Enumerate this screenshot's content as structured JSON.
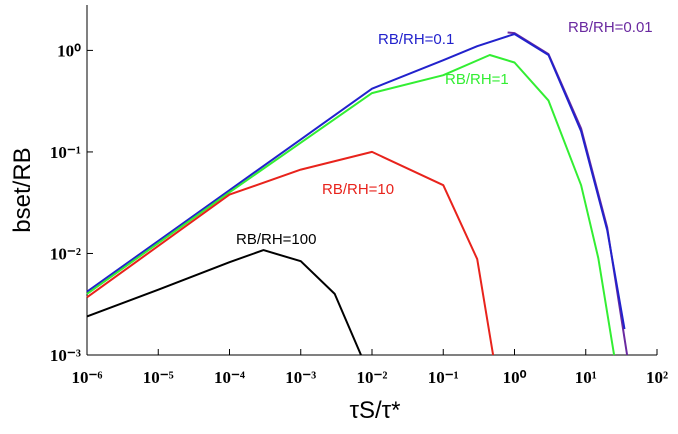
{
  "chart_data": {
    "type": "line",
    "x_label": "τS/τ*",
    "y_label": "bset/RB",
    "log_x": true,
    "log_y": true,
    "xlim": [
      1e-06,
      100
    ],
    "ylim": [
      0.001,
      2.8
    ],
    "xticks": [
      {
        "value": 1e-06,
        "label": "10⁻⁶"
      },
      {
        "value": 1e-05,
        "label": "10⁻⁵"
      },
      {
        "value": 0.0001,
        "label": "10⁻⁴"
      },
      {
        "value": 0.001,
        "label": "10⁻³"
      },
      {
        "value": 0.01,
        "label": "10⁻²"
      },
      {
        "value": 0.1,
        "label": "10⁻¹"
      },
      {
        "value": 1,
        "label": "10⁰"
      },
      {
        "value": 10,
        "label": "10¹"
      },
      {
        "value": 100,
        "label": "10²"
      }
    ],
    "yticks": [
      {
        "value": 0.001,
        "label": "10⁻³"
      },
      {
        "value": 0.01,
        "label": "10⁻²"
      },
      {
        "value": 0.1,
        "label": "10⁻¹"
      },
      {
        "value": 1,
        "label": "10⁰"
      }
    ],
    "series": [
      {
        "name": "RB/RH=0.01",
        "color": "#6a2aa0",
        "x": [
          0.8,
          1,
          3,
          8.6,
          20,
          38
        ],
        "values": [
          1.5,
          1.48,
          0.92,
          0.17,
          0.018,
          0.001
        ]
      },
      {
        "name": "RB/RH=0.1",
        "color": "#2222cc",
        "x": [
          1e-06,
          1e-05,
          0.0001,
          0.001,
          0.01,
          0.1,
          0.3,
          1,
          3,
          8.6,
          20,
          35
        ],
        "values": [
          0.0042,
          0.0133,
          0.042,
          0.133,
          0.42,
          0.8,
          1.1,
          1.45,
          0.9,
          0.16,
          0.017,
          0.0018
        ]
      },
      {
        "name": "RB/RH=1",
        "color": "#33ee33",
        "x": [
          1e-06,
          0.0001,
          0.01,
          0.1,
          0.45,
          1,
          3,
          8.6,
          15,
          25
        ],
        "values": [
          0.004,
          0.04,
          0.38,
          0.57,
          0.9,
          0.76,
          0.32,
          0.047,
          0.009,
          0.001
        ]
      },
      {
        "name": "RB/RH=10",
        "color": "#e8231c",
        "x": [
          1e-06,
          0.0001,
          0.001,
          0.01,
          0.1,
          0.3,
          0.5
        ],
        "values": [
          0.0037,
          0.038,
          0.067,
          0.1,
          0.047,
          0.0088,
          0.001
        ]
      },
      {
        "name": "RB/RH=100",
        "color": "#000000",
        "x": [
          1e-06,
          1e-05,
          0.0001,
          0.0003,
          0.001,
          0.003,
          0.007
        ],
        "values": [
          0.0024,
          0.0044,
          0.0082,
          0.0108,
          0.0084,
          0.004,
          0.001
        ]
      }
    ]
  }
}
